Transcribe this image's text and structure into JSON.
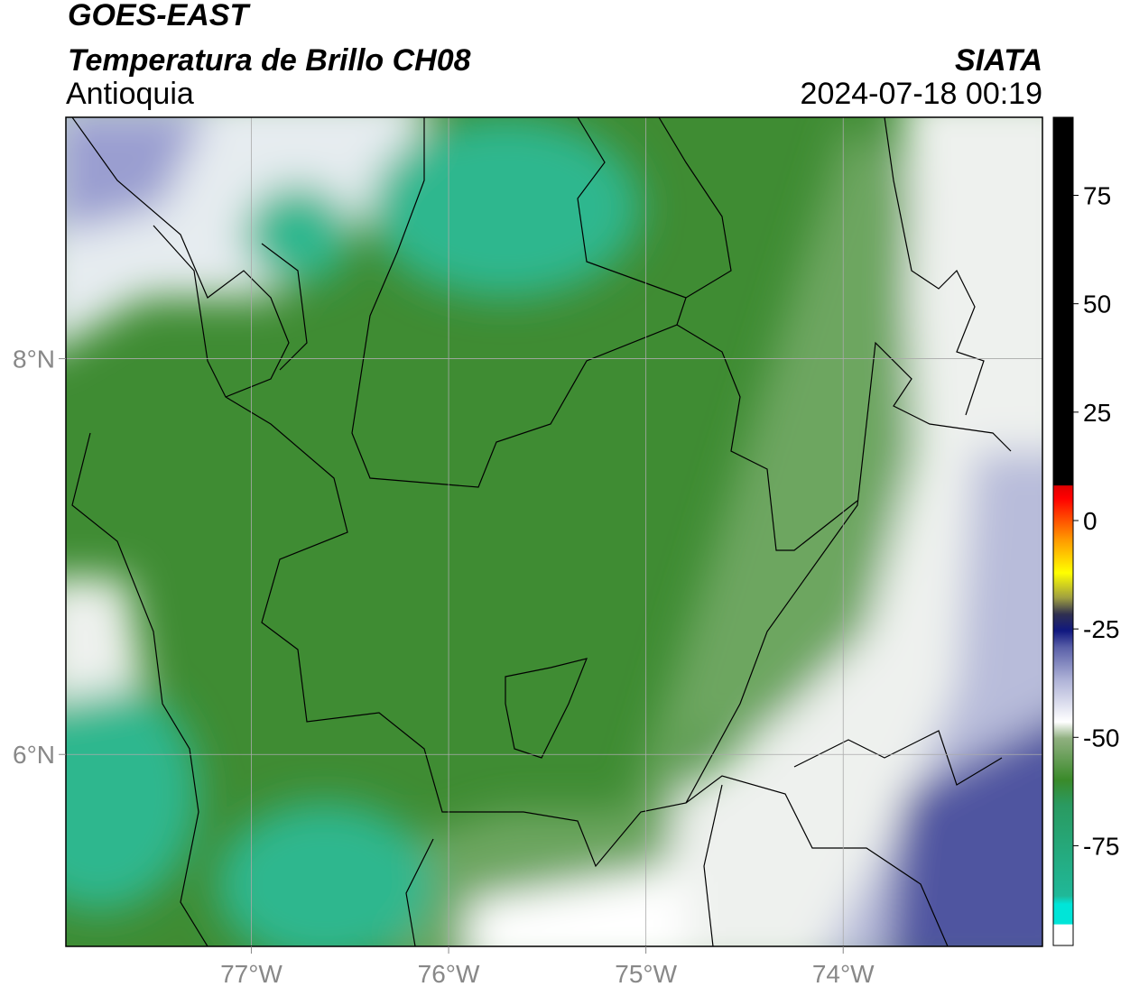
{
  "header": {
    "title": "GOES-EAST",
    "subtitle": "Temperatura de Brillo CH08",
    "region": "Antioquia",
    "source": "SIATA",
    "datetime": "2024-07-18 00:19"
  },
  "map": {
    "xlim": [
      -77.94,
      -72.99
    ],
    "ylim": [
      5.03,
      9.22
    ],
    "xticks": [
      {
        "value": -77,
        "label": "77°W"
      },
      {
        "value": -76,
        "label": "76°W"
      },
      {
        "value": -75,
        "label": "75°W"
      },
      {
        "value": -74,
        "label": "74°W"
      }
    ],
    "yticks": [
      {
        "value": 8,
        "label": "8°N"
      },
      {
        "value": 6,
        "label": "6°N"
      }
    ],
    "grid": true
  },
  "colorbar": {
    "lim": [
      -98,
      93
    ],
    "ticks": [
      75,
      50,
      25,
      0,
      -25,
      -50,
      -75
    ]
  }
}
